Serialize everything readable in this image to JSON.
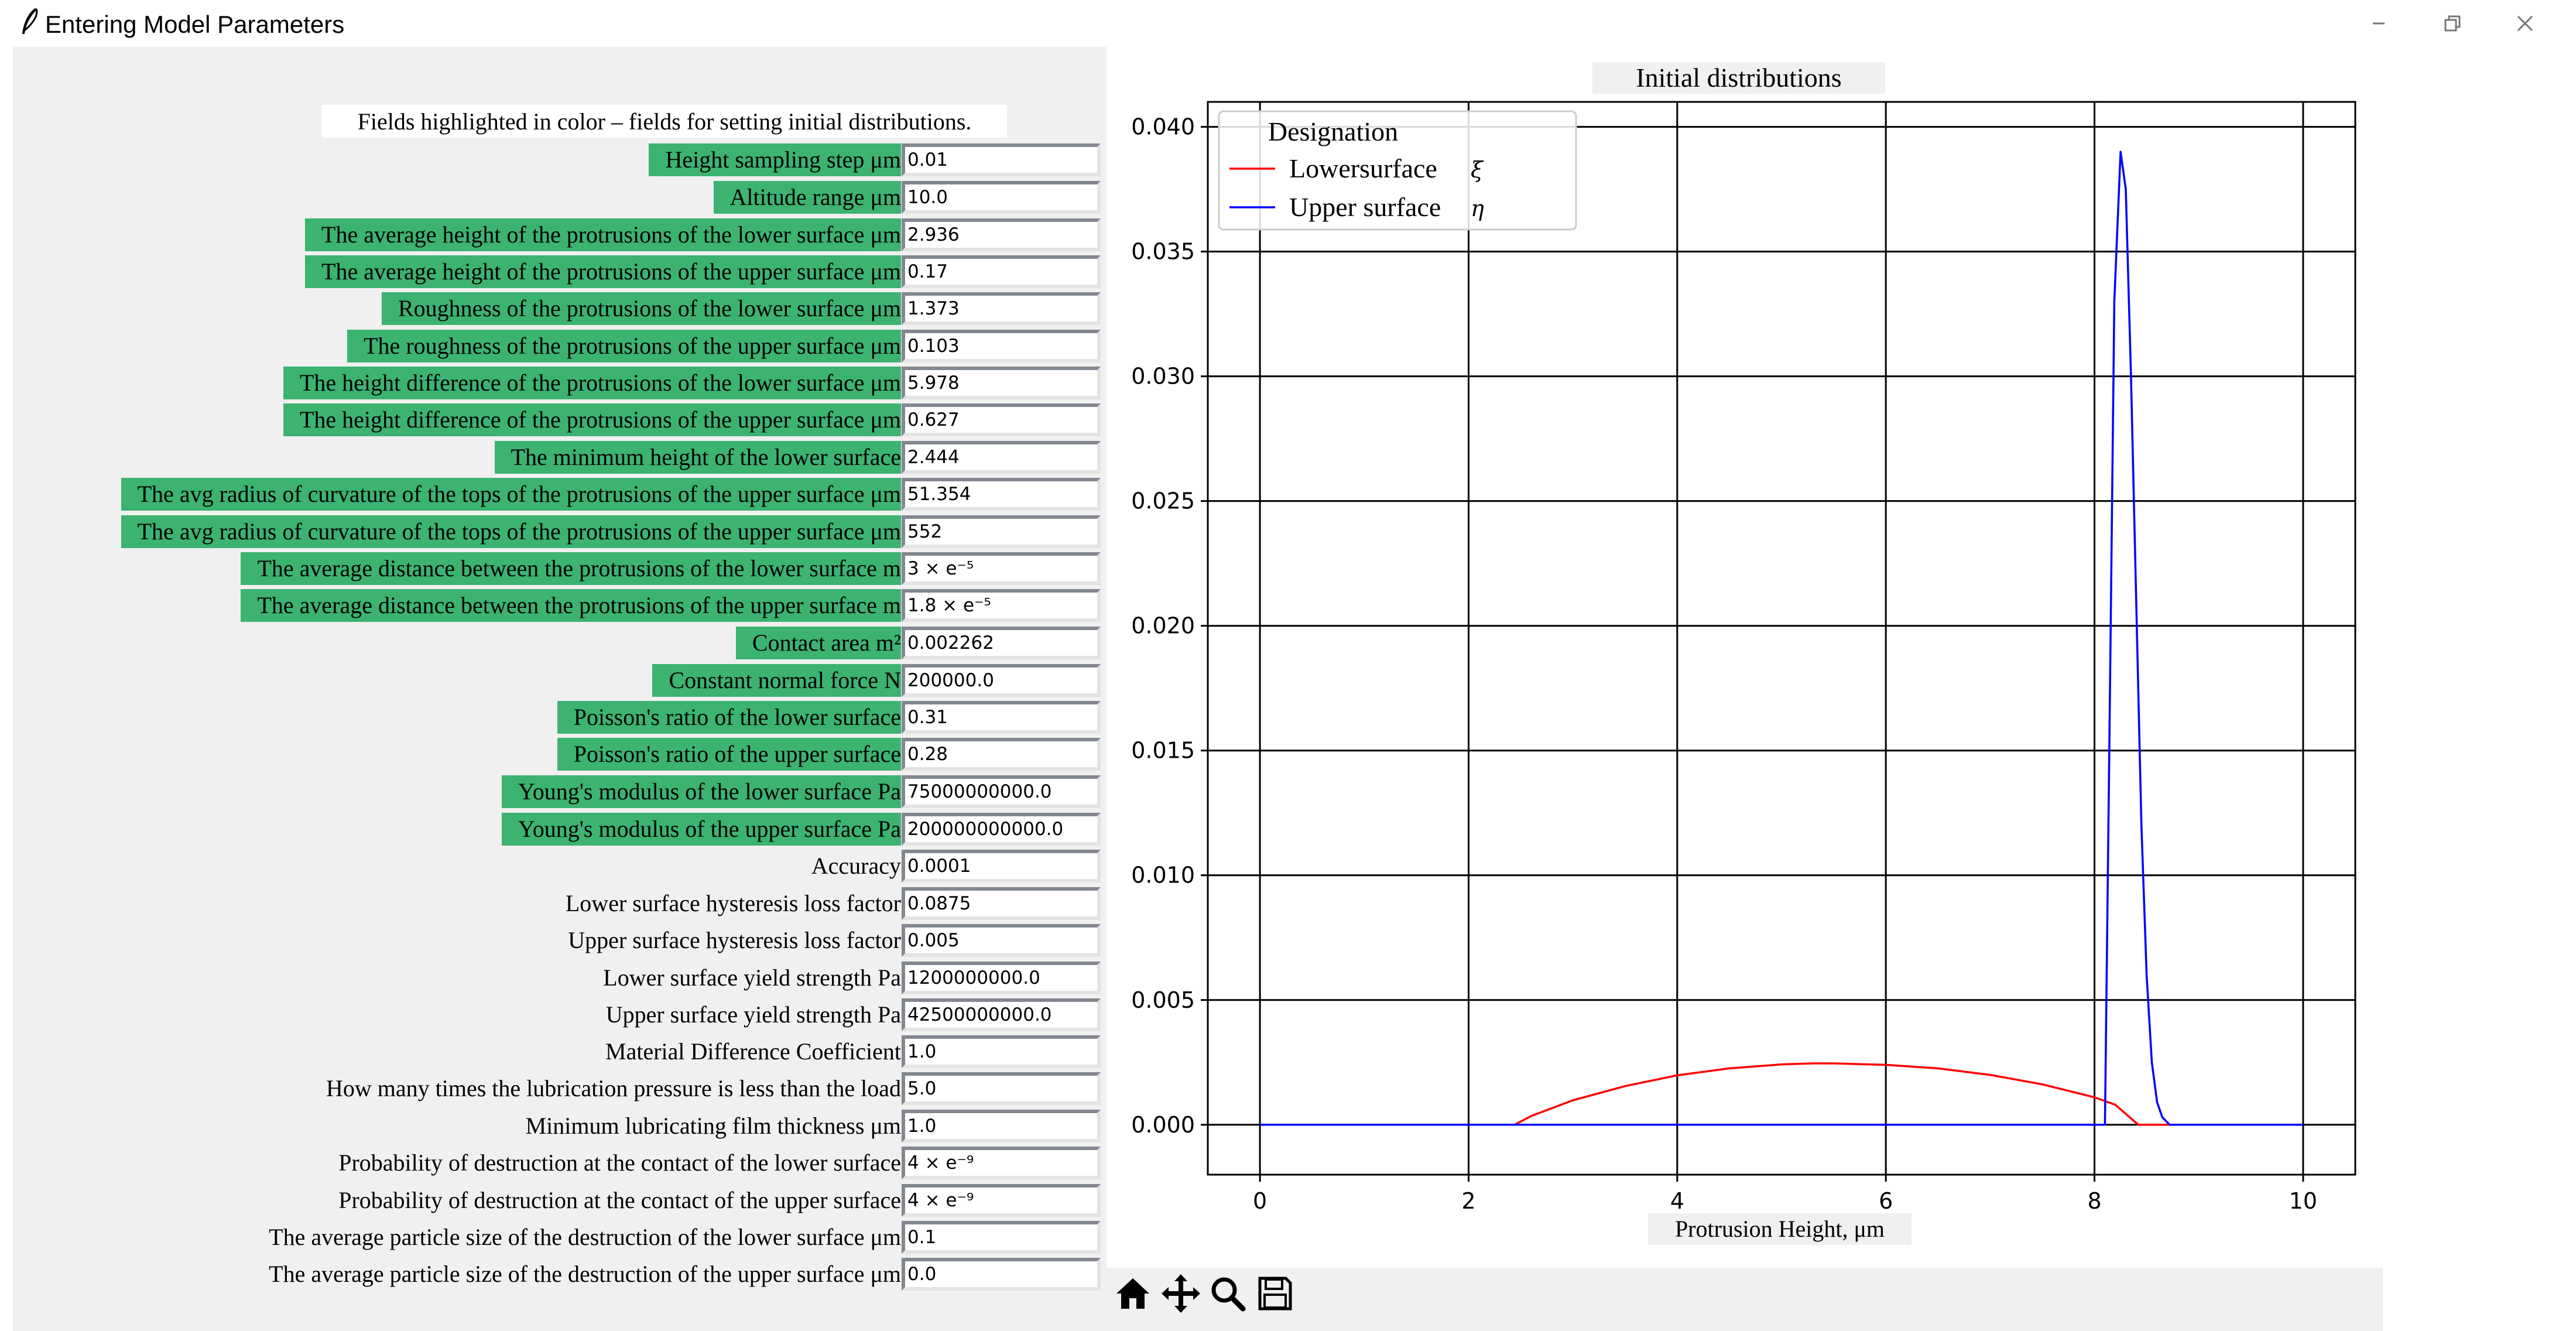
{
  "window": {
    "title": "Entering Model Parameters",
    "icon": "feather-icon",
    "controls": [
      "minimize-icon",
      "maximize-icon",
      "close-icon"
    ]
  },
  "form": {
    "note": "Fields highlighted in color – fields for setting initial distributions.",
    "highlight_color": "#3cb371",
    "params": [
      {
        "label": "Height sampling step μm",
        "value": "0.01",
        "highlighted": true
      },
      {
        "label": "Altitude range μm",
        "value": "10.0",
        "highlighted": true
      },
      {
        "label": "The average height of the protrusions of the lower surface μm",
        "value": "2.936",
        "highlighted": true
      },
      {
        "label": "The average height of the protrusions of the upper surface μm",
        "value": "0.17",
        "highlighted": true
      },
      {
        "label": "Roughness of the protrusions of the lower surface μm",
        "value": "1.373",
        "highlighted": true
      },
      {
        "label": "The roughness of the protrusions of the upper surface μm",
        "value": "0.103",
        "highlighted": true
      },
      {
        "label": "The height difference of the protrusions of the lower surface μm",
        "value": "5.978",
        "highlighted": true
      },
      {
        "label": "The height difference of the protrusions of the upper surface μm",
        "value": "0.627",
        "highlighted": true
      },
      {
        "label": "The minimum height of the lower surface",
        "value": "2.444",
        "highlighted": true
      },
      {
        "label": "The avg radius of curvature of the tops of the protrusions of the upper surface μm",
        "value": "51.354",
        "highlighted": true
      },
      {
        "label": "The avg radius of curvature of the tops of the protrusions of the upper surface μm",
        "value": "552",
        "highlighted": true
      },
      {
        "label": "The average distance between the protrusions of the lower surface m",
        "value": "3 × e⁻⁵",
        "highlighted": true
      },
      {
        "label": "The average distance between the protrusions of the upper surface m",
        "value": "1.8 × e⁻⁵",
        "highlighted": true
      },
      {
        "label": "Contact area m²",
        "value": "0.002262",
        "highlighted": true
      },
      {
        "label": "Constant normal force N",
        "value": "200000.0",
        "highlighted": true
      },
      {
        "label": "Poisson's ratio of the lower surface",
        "value": "0.31",
        "highlighted": true
      },
      {
        "label": "Poisson's ratio of the upper surface",
        "value": "0.28",
        "highlighted": true
      },
      {
        "label": "Young's modulus of the lower surface Pa",
        "value": "75000000000.0",
        "highlighted": true
      },
      {
        "label": "Young's modulus of the upper surface Pa",
        "value": "200000000000.0",
        "highlighted": true
      },
      {
        "label": "Accuracy",
        "value": "0.0001",
        "highlighted": false
      },
      {
        "label": "Lower surface hysteresis loss factor",
        "value": "0.0875",
        "highlighted": false
      },
      {
        "label": "Upper surface hysteresis loss factor",
        "value": "0.005",
        "highlighted": false
      },
      {
        "label": "Lower surface yield strength Pa",
        "value": "1200000000.0",
        "highlighted": false
      },
      {
        "label": "Upper surface yield strength Pa",
        "value": "42500000000.0",
        "highlighted": false
      },
      {
        "label": "Material Difference Coefficient",
        "value": "1.0",
        "highlighted": false
      },
      {
        "label": "How many times the lubrication pressure is less than the load",
        "value": "5.0",
        "highlighted": false
      },
      {
        "label": "Minimum lubricating film thickness μm",
        "value": "1.0",
        "highlighted": false
      },
      {
        "label": "Probability of destruction at the contact of the lower surface",
        "value": "4 × e⁻⁹",
        "highlighted": false
      },
      {
        "label": "Probability of destruction at the contact of the upper surface",
        "value": "4 × e⁻⁹",
        "highlighted": false
      },
      {
        "label": "The average particle size of the destruction of the lower surface μm",
        "value": "0.1",
        "highlighted": false
      },
      {
        "label": "The average particle size of the destruction of the upper surface μm",
        "value": "0.0",
        "highlighted": false
      }
    ]
  },
  "chart": {
    "title": "Initial distributions",
    "xlabel": "Protrusion Height, μm",
    "legend_title": "Designation",
    "legend_symbols": [
      "ξ",
      "η"
    ]
  },
  "chart_data": {
    "type": "line",
    "title": "Initial distributions",
    "xlabel": "Protrusion Height, μm",
    "ylabel": "",
    "xlim": [
      -0.5,
      10.5
    ],
    "ylim": [
      -0.002,
      0.041
    ],
    "xticks": [
      0,
      2,
      4,
      6,
      8,
      10
    ],
    "yticks": [
      "0.000",
      "0.005",
      "0.010",
      "0.015",
      "0.020",
      "0.025",
      "0.030",
      "0.035",
      "0.040"
    ],
    "grid": true,
    "legend_title": "Designation",
    "legend_position": "top-left",
    "series": [
      {
        "name": "Lowersurface",
        "color": "#ff0000",
        "x": [
          0,
          2.44,
          2.6,
          3.0,
          3.5,
          4.0,
          4.5,
          5.0,
          5.3,
          5.5,
          6.0,
          6.5,
          7.0,
          7.5,
          8.0,
          8.2,
          8.42,
          10
        ],
        "y": [
          0,
          0,
          0.00035,
          0.00098,
          0.00155,
          0.00198,
          0.00226,
          0.00242,
          0.00246,
          0.00246,
          0.0024,
          0.00226,
          0.002,
          0.00162,
          0.0011,
          0.0008,
          0,
          0
        ]
      },
      {
        "name": "Upper surface",
        "color": "#0000ff",
        "x": [
          0,
          8.1,
          8.15,
          8.19,
          8.25,
          8.3,
          8.35,
          8.4,
          8.45,
          8.5,
          8.55,
          8.6,
          8.65,
          8.72,
          10
        ],
        "y": [
          0,
          0,
          0.018,
          0.033,
          0.039,
          0.0375,
          0.03,
          0.021,
          0.012,
          0.006,
          0.0025,
          0.0009,
          0.0003,
          0,
          0
        ]
      }
    ]
  },
  "toolbar": [
    "home-icon",
    "pan-icon",
    "zoom-icon",
    "save-icon"
  ]
}
